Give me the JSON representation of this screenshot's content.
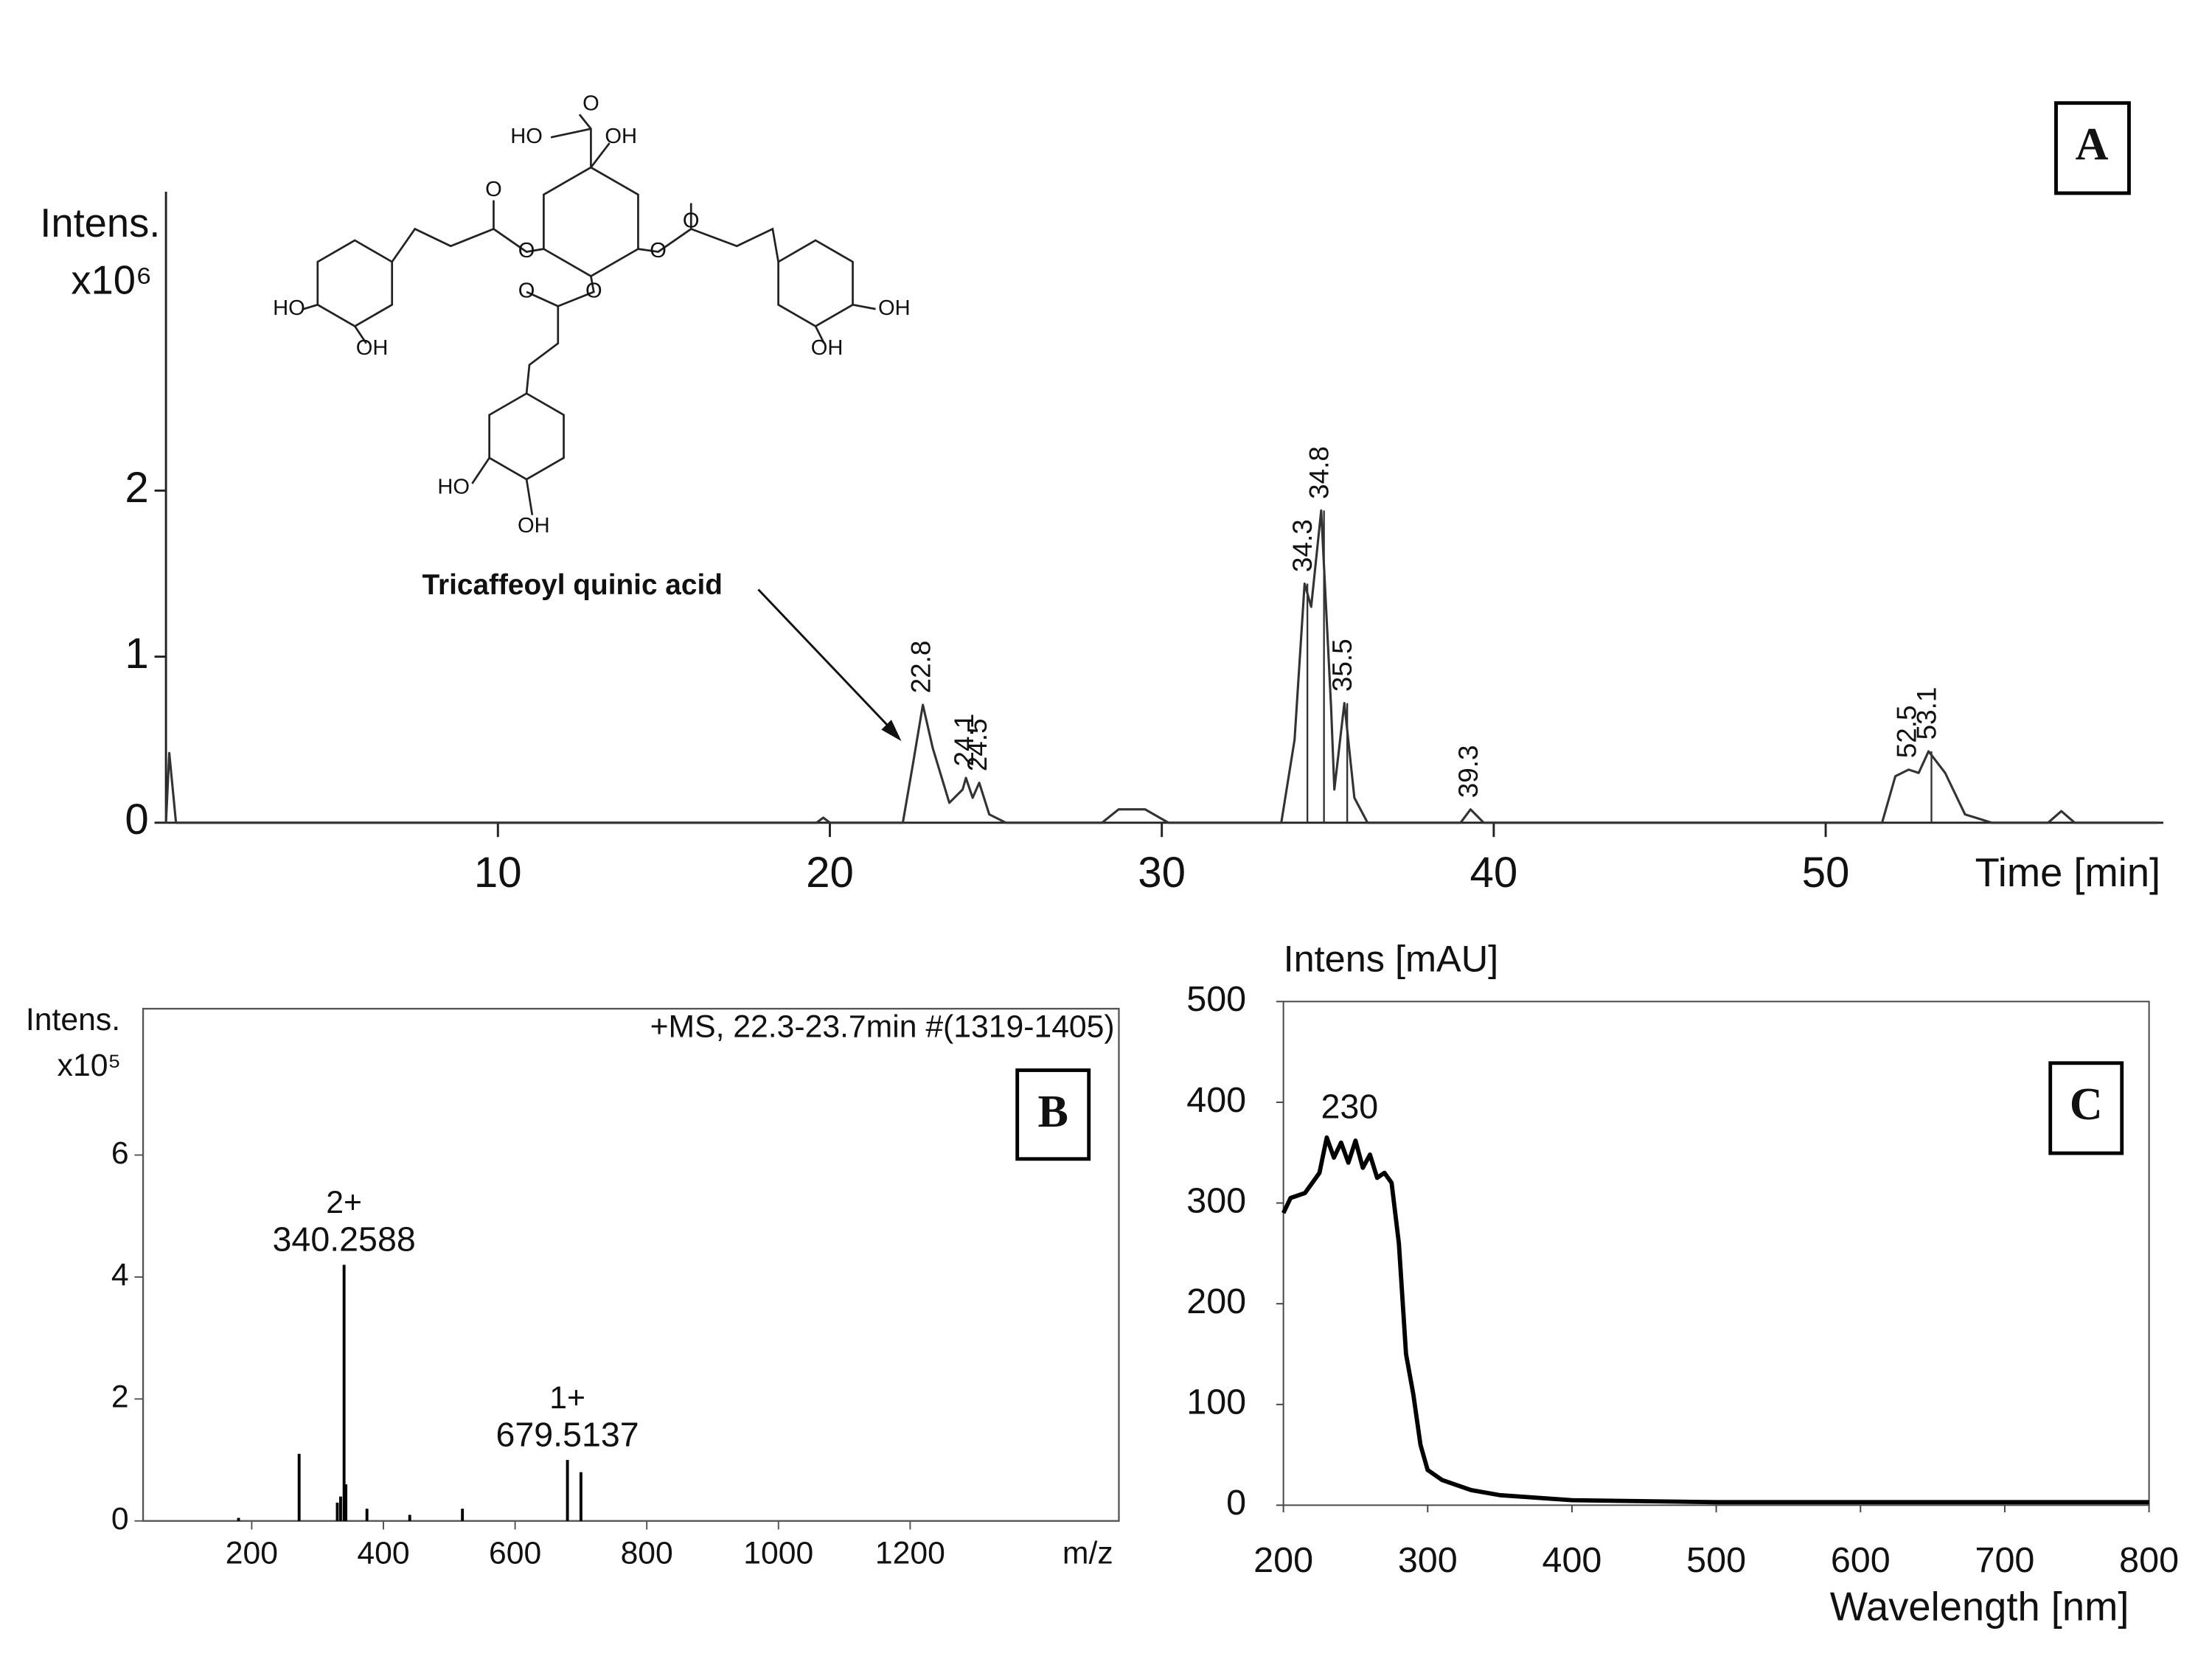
{
  "chart_data": [
    {
      "type": "line",
      "panel_label": "A",
      "y_label": "Intens.",
      "y_multiplier": "x10⁶",
      "x_label": "Time [min]",
      "color": "#333333",
      "x": [
        0,
        0.1,
        0.3,
        19.6,
        19.8,
        20,
        22.2,
        22.5,
        22.8,
        23.1,
        23.6,
        24.0,
        24.1,
        24.3,
        24.5,
        24.8,
        25.3,
        28.2,
        28.7,
        29.5,
        30.2,
        33.6,
        34.0,
        34.3,
        34.5,
        34.8,
        35.1,
        35.2,
        35.5,
        35.8,
        36.2,
        39.0,
        39.3,
        39.7,
        51.7,
        52.1,
        52.5,
        52.8,
        53.1,
        53.6,
        54.2,
        55,
        56.7,
        57.1,
        57.5,
        60
      ],
      "values": [
        0,
        0.42,
        0,
        0,
        0.03,
        0,
        0,
        0.35,
        0.71,
        0.45,
        0.12,
        0.2,
        0.27,
        0.15,
        0.24,
        0.05,
        0,
        0,
        0.08,
        0.08,
        0,
        0,
        0.5,
        1.44,
        1.3,
        1.88,
        0.7,
        0.2,
        0.72,
        0.15,
        0,
        0,
        0.08,
        0,
        0,
        0.28,
        0.32,
        0.3,
        0.43,
        0.3,
        0.05,
        0,
        0,
        0.07,
        0,
        0
      ],
      "peak_x": [
        22.8,
        24.1,
        24.5,
        34.3,
        34.8,
        35.5,
        39.3,
        52.5,
        53.1
      ],
      "peak_values": [
        0.71,
        0.27,
        0.24,
        1.44,
        1.88,
        0.72,
        0.08,
        0.32,
        0.43
      ],
      "xlim": [
        0,
        60
      ],
      "ylim": [
        0,
        3.8
      ],
      "xticks": [
        10,
        20,
        30,
        40,
        50
      ],
      "yticks": [
        0,
        1,
        2
      ],
      "annotation": "Tricaffeoyl quinic acid",
      "structure_labels": [
        "O",
        "HO",
        "OH",
        "O",
        "O",
        "O",
        "O",
        "O",
        "O",
        "HO",
        "OH",
        "OH",
        "OH",
        "HO",
        "OH"
      ]
    },
    {
      "type": "stick",
      "panel_label": "B",
      "title": "+MS, 22.3-23.7min #(1319-1405)",
      "y_label": "Intens.",
      "y_multiplier": "x10⁵",
      "x_label": "m/z",
      "color": "#000000",
      "x": [
        180,
        272,
        330,
        335,
        343,
        375,
        440,
        520,
        700
      ],
      "values": [
        0.05,
        1.1,
        0.3,
        0.4,
        0.6,
        0.2,
        0.1,
        0.2,
        0.8
      ],
      "labeled": [
        {
          "charge": "2+",
          "x": 340.2588,
          "value": 4.2
        },
        {
          "charge": "1+",
          "x": 679.5137,
          "value": 1.0
        }
      ],
      "xlim": [
        35,
        1517
      ],
      "ylim": [
        0,
        8.4
      ],
      "xticks": [
        200,
        400,
        600,
        800,
        1000,
        1200
      ],
      "yticks": [
        0,
        2,
        4,
        6
      ]
    },
    {
      "type": "line",
      "panel_label": "C",
      "y_label": "Intens [mAU]",
      "x_label": "Wavelength [nm]",
      "color": "#000000",
      "x": [
        200,
        205,
        215,
        225,
        230,
        235,
        240,
        245,
        250,
        255,
        260,
        265,
        270,
        275,
        280,
        285,
        290,
        295,
        300,
        310,
        330,
        350,
        400,
        500,
        800
      ],
      "values": [
        290,
        305,
        310,
        330,
        365,
        345,
        360,
        340,
        362,
        335,
        348,
        325,
        330,
        320,
        260,
        150,
        110,
        60,
        35,
        25,
        15,
        10,
        5,
        3,
        3
      ],
      "peak": {
        "x": 230,
        "value": 365
      },
      "xlim": [
        200,
        800
      ],
      "ylim": [
        0,
        500
      ],
      "xticks": [
        200,
        300,
        400,
        500,
        600,
        700,
        800
      ],
      "yticks": [
        0,
        100,
        200,
        300,
        400,
        500
      ]
    }
  ]
}
